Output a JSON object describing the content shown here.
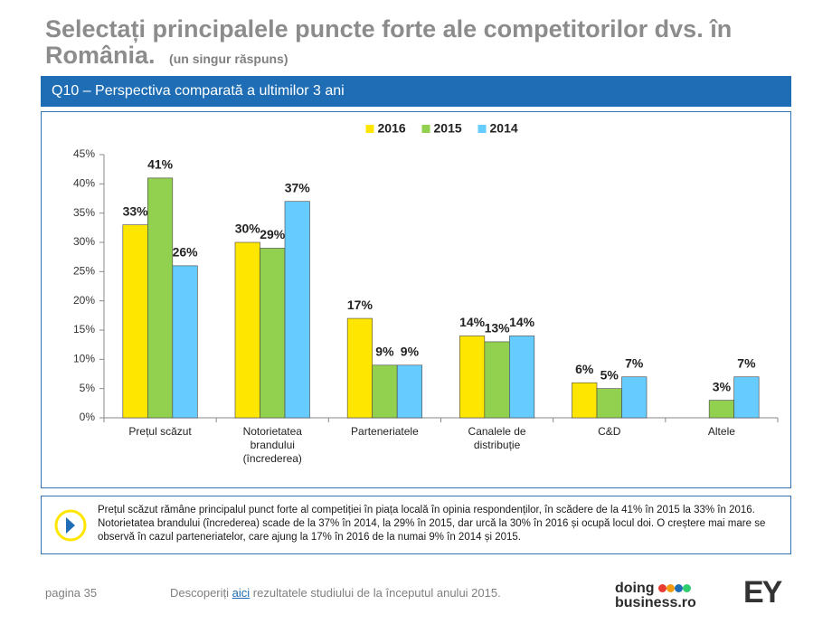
{
  "header": {
    "title": "Selectați principalele puncte forte ale competitorilor dvs. în România.",
    "subtitle": "(un singur răspuns)",
    "banner": "Q10 – Perspectiva comparată a ultimilor 3 ani"
  },
  "chart_data": {
    "type": "bar",
    "categories": [
      "Prețul scăzut",
      "Notorietatea brandului (încrederea)",
      "Parteneriatele",
      "Canalele de distribuție",
      "C&D",
      "Altele"
    ],
    "series": [
      {
        "name": "2016",
        "color": "#ffe600",
        "values": [
          33,
          30,
          17,
          14,
          6,
          null
        ],
        "value_labels": [
          "33%",
          "30%",
          "17%",
          "14%",
          "6%",
          null
        ]
      },
      {
        "name": "2015",
        "color": "#92d050",
        "values": [
          41,
          29,
          9,
          13,
          5,
          3
        ],
        "value_labels": [
          "41%",
          "29%",
          "9%",
          "13%",
          "5%",
          "3%"
        ]
      },
      {
        "name": "2014",
        "color": "#66ccff",
        "values": [
          26,
          37,
          9,
          14,
          7,
          7
        ],
        "value_labels": [
          "26%",
          "37%",
          "9%",
          "14%",
          "7%",
          "7%"
        ]
      }
    ],
    "ylim": [
      0,
      45
    ],
    "yticks": [
      {
        "value": 0,
        "label": "0%"
      },
      {
        "value": 5,
        "label": "5%"
      },
      {
        "value": 10,
        "label": "10%"
      },
      {
        "value": 15,
        "label": "15%"
      },
      {
        "value": 20,
        "label": "20%"
      },
      {
        "value": 25,
        "label": "25%"
      },
      {
        "value": 30,
        "label": "30%"
      },
      {
        "value": 35,
        "label": "35%"
      },
      {
        "value": 40,
        "label": "40%"
      },
      {
        "value": 45,
        "label": "45%"
      }
    ],
    "grid": false,
    "legend": "top"
  },
  "insight": "Prețul scăzut rămâne principalul punct forte al competiției în piața locală în opinia respondenților, în scădere de la 41% în 2015 la 33% în 2016. Notorietatea brandului (încrederea) scade de la 37% în 2014, la 29% în 2015, dar urcă la 30% în 2016 și ocupă locul doi. O creștere mai mare se observă în cazul parteneriatelor, care ajung la 17% în 2016 de la numai 9% în 2014 și 2015.",
  "footer": {
    "page": "pagina 35",
    "note_before": "Descoperiți",
    "link": "aici",
    "note_after": "rezultatele studiului de la începutul anului 2015.",
    "logo_top": "doing",
    "logo_bottom": "business.ro",
    "logo_ey": "EY"
  }
}
